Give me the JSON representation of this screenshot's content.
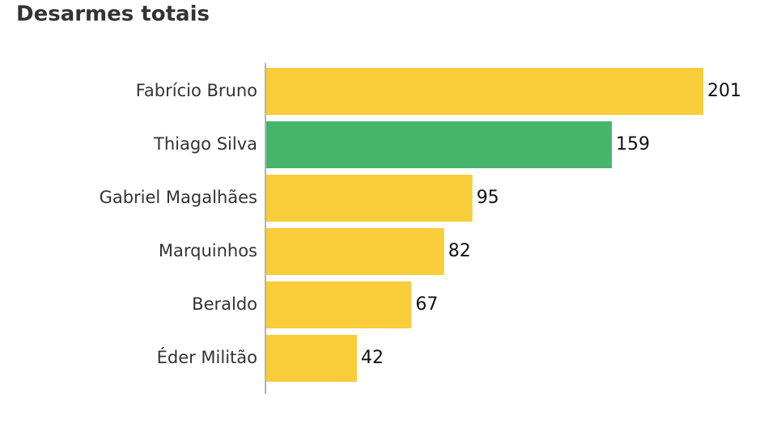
{
  "chart_data": {
    "type": "bar",
    "orientation": "horizontal",
    "title": "Desarmes totais",
    "categories": [
      "Fabrício Bruno",
      "Thiago Silva",
      "Gabriel Magalhães",
      "Marquinhos",
      "Beraldo",
      "Éder Militão"
    ],
    "values": [
      201,
      159,
      95,
      82,
      67,
      42
    ],
    "colors": [
      "#f9cc3a",
      "#46b46b",
      "#f9cc3a",
      "#f9cc3a",
      "#f9cc3a",
      "#f9cc3a"
    ]
  }
}
